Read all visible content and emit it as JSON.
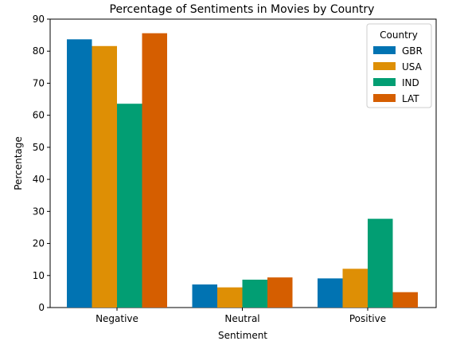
{
  "chart_data": {
    "type": "bar",
    "title": "Percentage of Sentiments in Movies by Country",
    "xlabel": "Sentiment",
    "ylabel": "Percentage",
    "categories": [
      "Negative",
      "Neutral",
      "Positive"
    ],
    "series": [
      {
        "name": "GBR",
        "values": [
          83.7,
          7.2,
          9.1
        ],
        "color": "#0173b2"
      },
      {
        "name": "USA",
        "values": [
          81.6,
          6.3,
          12.1
        ],
        "color": "#de8f05"
      },
      {
        "name": "IND",
        "values": [
          63.6,
          8.7,
          27.7
        ],
        "color": "#029e73"
      },
      {
        "name": "LAT",
        "values": [
          85.6,
          9.4,
          4.8
        ],
        "color": "#d55e00"
      }
    ],
    "ylim": [
      0,
      90
    ],
    "yticks": [
      0,
      10,
      20,
      30,
      40,
      50,
      60,
      70,
      80,
      90
    ],
    "grid": false,
    "legend": {
      "title": "Country",
      "placement": "top-right"
    }
  }
}
